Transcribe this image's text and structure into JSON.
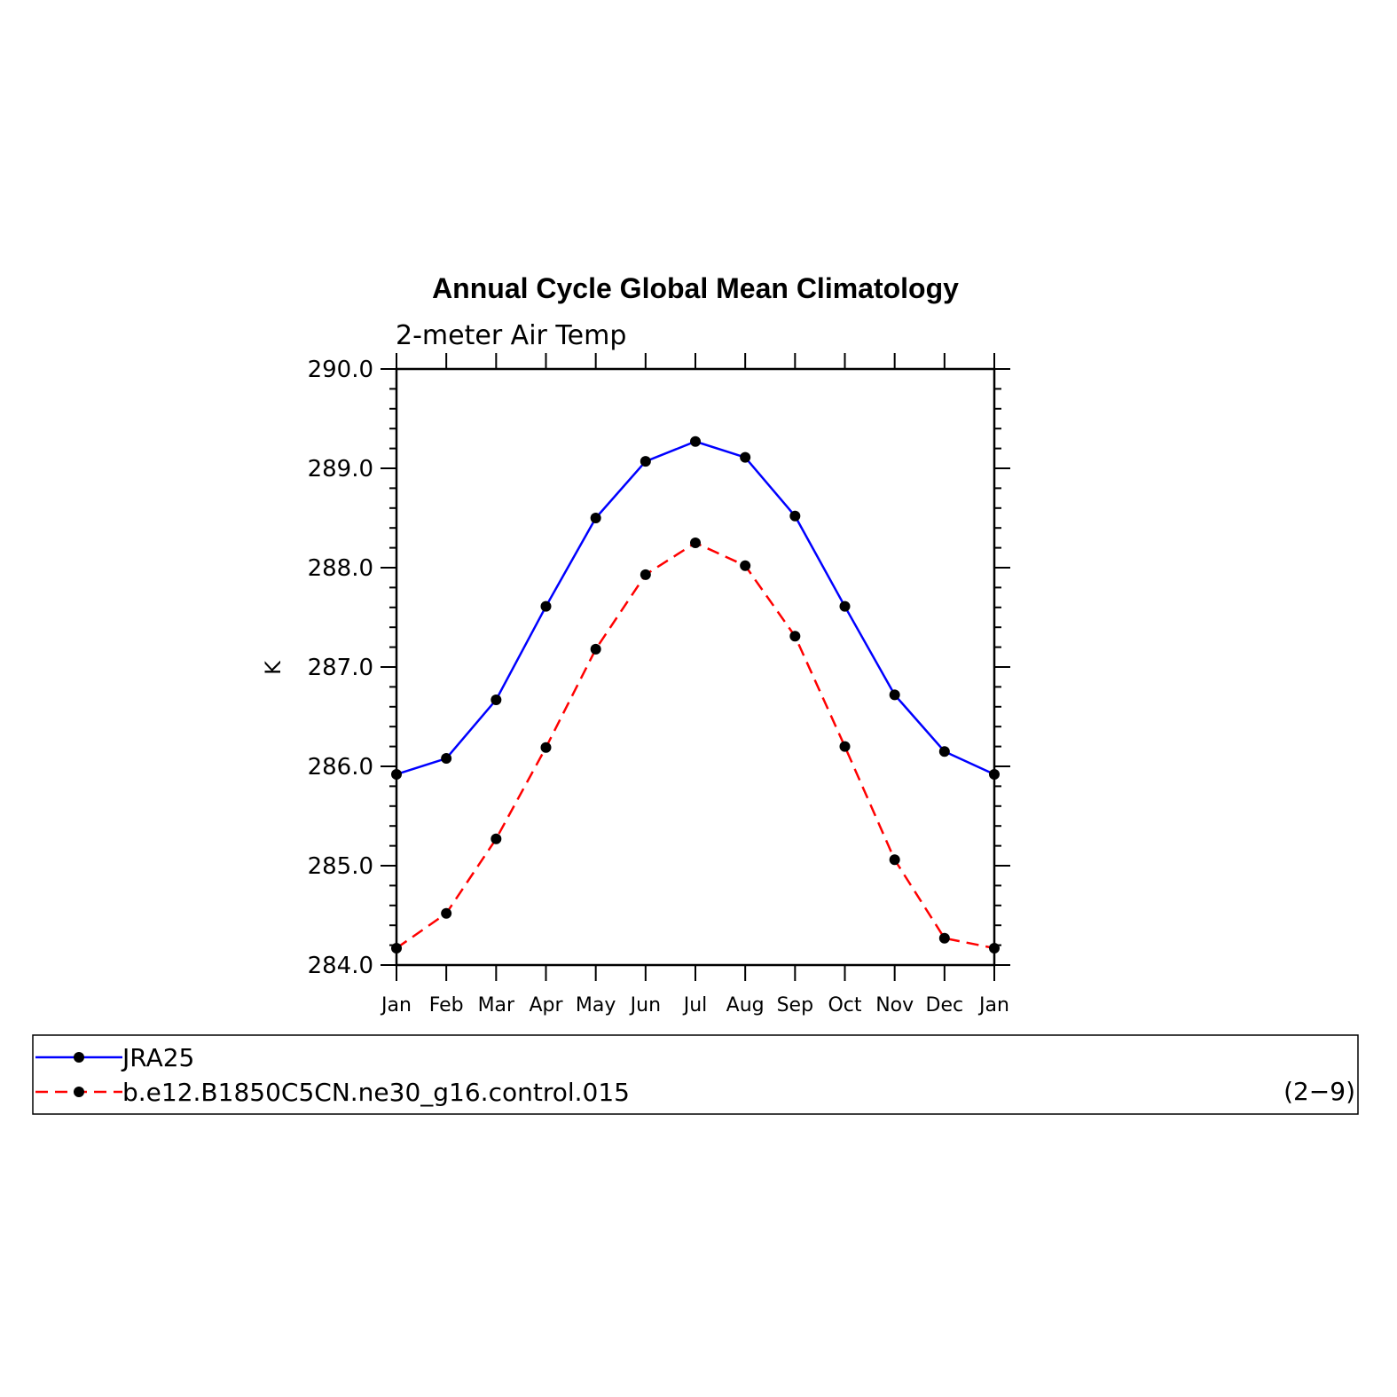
{
  "chart_data": {
    "type": "line",
    "title": "Annual Cycle Global Mean Climatology",
    "subtitle": "2-meter Air Temp",
    "xlabel": "",
    "ylabel": "K",
    "categories": [
      "Jan",
      "Feb",
      "Mar",
      "Apr",
      "May",
      "Jun",
      "Jul",
      "Aug",
      "Sep",
      "Oct",
      "Nov",
      "Dec",
      "Jan"
    ],
    "ylim": [
      284.0,
      290.0
    ],
    "yticks": [
      "284.0",
      "285.0",
      "286.0",
      "287.0",
      "288.0",
      "289.0",
      "290.0"
    ],
    "grid": false,
    "legend_position": "bottom",
    "series": [
      {
        "name": "JRA25",
        "color": "#0000ff",
        "dash": "solid",
        "values": [
          285.92,
          286.08,
          286.67,
          287.61,
          288.5,
          289.07,
          289.27,
          289.11,
          288.52,
          287.61,
          286.72,
          286.15,
          285.92
        ]
      },
      {
        "name": "b.e12.B1850C5CN.ne30_g16.control.015",
        "color": "#ff0000",
        "dash": "dashed",
        "values": [
          284.17,
          284.52,
          285.27,
          286.19,
          287.18,
          287.93,
          288.25,
          288.02,
          287.31,
          286.2,
          285.06,
          284.27,
          284.17
        ]
      }
    ],
    "legend_note": "(2−9)"
  }
}
